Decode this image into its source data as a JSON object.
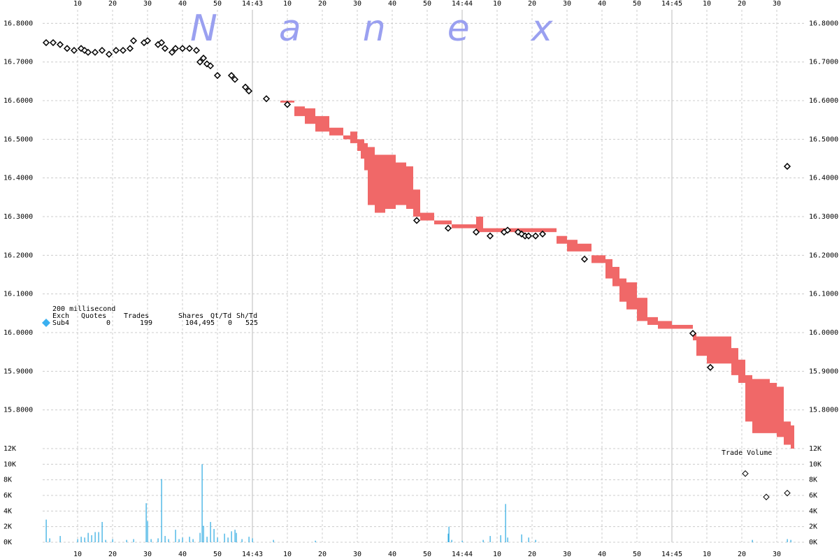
{
  "chart_data": [
    {
      "type": "price",
      "watermark": "Nanex",
      "xlim": [
        0,
        218
      ],
      "xticks": [
        {
          "value": 10,
          "label": "10"
        },
        {
          "value": 20,
          "label": "20"
        },
        {
          "value": 30,
          "label": "30"
        },
        {
          "value": 40,
          "label": "40"
        },
        {
          "value": 50,
          "label": "50"
        },
        {
          "value": 60,
          "label": "14:43"
        },
        {
          "value": 70,
          "label": "10"
        },
        {
          "value": 80,
          "label": "20"
        },
        {
          "value": 90,
          "label": "30"
        },
        {
          "value": 100,
          "label": "40"
        },
        {
          "value": 110,
          "label": "50"
        },
        {
          "value": 120,
          "label": "14:44"
        },
        {
          "value": 130,
          "label": "10"
        },
        {
          "value": 140,
          "label": "20"
        },
        {
          "value": 150,
          "label": "30"
        },
        {
          "value": 160,
          "label": "40"
        },
        {
          "value": 170,
          "label": "50"
        },
        {
          "value": 180,
          "label": "14:45"
        },
        {
          "value": 190,
          "label": "10"
        },
        {
          "value": 200,
          "label": "20"
        },
        {
          "value": 210,
          "label": "30"
        }
      ],
      "ylim": [
        15.7,
        16.835
      ],
      "yticks": [
        {
          "value": 15.8,
          "label": "15.8000"
        },
        {
          "value": 15.9,
          "label": "15.9000"
        },
        {
          "value": 16.0,
          "label": "16.0000"
        },
        {
          "value": 16.1,
          "label": "16.1000"
        },
        {
          "value": 16.2,
          "label": "16.2000"
        },
        {
          "value": 16.3,
          "label": "16.3000"
        },
        {
          "value": 16.4,
          "label": "16.4000"
        },
        {
          "value": 16.5,
          "label": "16.5000"
        },
        {
          "value": 16.6,
          "label": "16.6000"
        },
        {
          "value": 16.7,
          "label": "16.7000"
        },
        {
          "value": 16.8,
          "label": "16.8000"
        }
      ],
      "grid": true,
      "quote_range": {
        "color": "#f06868",
        "x": [
          68,
          72,
          75,
          78,
          82,
          86,
          88,
          90,
          91,
          92,
          93,
          95,
          98,
          101,
          104,
          106,
          108,
          112,
          117,
          124,
          126,
          133,
          147,
          150,
          153,
          157,
          161,
          163,
          165,
          167,
          170,
          173,
          176,
          180,
          186,
          187,
          190,
          196,
          197,
          199,
          201,
          203,
          206,
          208,
          210,
          212,
          214
        ],
        "low": [
          16.595,
          16.56,
          16.54,
          16.52,
          16.51,
          16.5,
          16.49,
          16.47,
          16.45,
          16.42,
          16.33,
          16.31,
          16.32,
          16.33,
          16.32,
          16.3,
          16.29,
          16.28,
          16.27,
          16.26,
          16.26,
          16.26,
          16.23,
          16.21,
          16.21,
          16.18,
          16.14,
          16.12,
          16.08,
          16.06,
          16.03,
          16.02,
          16.01,
          16.01,
          15.98,
          15.94,
          15.92,
          15.92,
          15.89,
          15.87,
          15.77,
          15.74,
          15.74,
          15.74,
          15.73,
          15.71,
          15.7
        ],
        "high": [
          16.6,
          16.585,
          16.58,
          16.56,
          16.53,
          16.51,
          16.52,
          16.5,
          16.5,
          16.49,
          16.48,
          16.46,
          16.46,
          16.44,
          16.43,
          16.37,
          16.31,
          16.29,
          16.28,
          16.3,
          16.27,
          16.27,
          16.25,
          16.24,
          16.23,
          16.2,
          16.19,
          16.17,
          16.14,
          16.13,
          16.09,
          16.04,
          16.03,
          16.02,
          16.0,
          15.99,
          15.99,
          15.99,
          15.96,
          15.93,
          15.89,
          15.88,
          15.88,
          15.87,
          15.86,
          15.77,
          15.76
        ]
      },
      "trades": {
        "color": "#000000",
        "x": [
          1,
          3,
          5,
          7,
          9,
          11,
          12,
          13,
          15,
          17,
          19,
          21,
          23,
          25,
          26,
          29,
          30,
          33,
          34,
          35,
          37,
          38,
          40,
          42,
          44,
          45,
          46,
          47,
          48,
          50,
          54,
          55,
          58,
          59,
          64,
          70,
          107,
          116,
          124,
          128,
          132,
          133,
          136,
          137,
          138,
          139,
          141,
          143,
          155,
          186,
          191,
          213
        ],
        "y": [
          16.75,
          16.75,
          16.745,
          16.735,
          16.73,
          16.735,
          16.73,
          16.725,
          16.725,
          16.73,
          16.72,
          16.73,
          16.73,
          16.735,
          16.755,
          16.75,
          16.755,
          16.745,
          16.75,
          16.735,
          16.725,
          16.735,
          16.735,
          16.735,
          16.73,
          16.7,
          16.71,
          16.695,
          16.69,
          16.665,
          16.665,
          16.655,
          16.635,
          16.625,
          16.605,
          16.59,
          16.29,
          16.27,
          16.26,
          16.25,
          16.26,
          16.265,
          16.26,
          16.255,
          16.25,
          16.25,
          16.25,
          16.255,
          16.19,
          15.998,
          15.91,
          16.43
        ]
      },
      "legend": {
        "title": "200 millisecond",
        "headers": [
          "Exch",
          "Quotes",
          "Trades",
          "Shares",
          "Qt/Td",
          "Sh/Td"
        ],
        "row": [
          "Sub4",
          "0",
          "199",
          "104,495",
          "0",
          "525"
        ]
      }
    },
    {
      "type": "volume",
      "title": "Trade Volume",
      "xlim": [
        0,
        218
      ],
      "xticks": [
        {
          "value": 10,
          "label": "10"
        },
        {
          "value": 20,
          "label": "20"
        },
        {
          "value": 30,
          "label": "30"
        },
        {
          "value": 40,
          "label": "40"
        },
        {
          "value": 50,
          "label": "50"
        },
        {
          "value": 60,
          "label": "14:43"
        },
        {
          "value": 70,
          "label": "10"
        },
        {
          "value": 80,
          "label": "20"
        },
        {
          "value": 90,
          "label": "30"
        },
        {
          "value": 100,
          "label": "40"
        },
        {
          "value": 110,
          "label": "50"
        },
        {
          "value": 120,
          "label": "14:44"
        },
        {
          "value": 130,
          "label": "10"
        },
        {
          "value": 140,
          "label": "20"
        },
        {
          "value": 150,
          "label": "30"
        },
        {
          "value": 160,
          "label": "40"
        },
        {
          "value": 170,
          "label": "50"
        },
        {
          "value": 180,
          "label": "14:45"
        },
        {
          "value": 190,
          "label": "10"
        },
        {
          "value": 200,
          "label": "20"
        },
        {
          "value": 210,
          "label": "30"
        }
      ],
      "ylim": [
        0,
        12000
      ],
      "yticks": [
        {
          "value": 0,
          "label": "0K"
        },
        {
          "value": 2000,
          "label": "2K"
        },
        {
          "value": 4000,
          "label": "4K"
        },
        {
          "value": 6000,
          "label": "6K"
        },
        {
          "value": 8000,
          "label": "8K"
        },
        {
          "value": 10000,
          "label": "10K"
        },
        {
          "value": 12000,
          "label": "12K"
        }
      ],
      "grid": true,
      "color": "#29a8e0",
      "x": [
        1,
        2,
        5,
        10,
        11,
        12,
        13,
        14,
        15,
        16,
        17,
        18,
        20,
        24,
        26,
        29.6,
        30,
        31,
        33,
        34,
        35,
        36,
        38,
        39,
        40,
        42,
        43,
        45,
        45.6,
        46,
        47,
        48,
        49,
        50,
        52,
        53,
        54,
        55,
        55.4,
        57,
        59,
        60,
        66,
        78,
        116,
        116.2,
        117,
        120,
        126,
        128,
        131,
        132.4,
        133,
        137,
        139,
        141,
        203,
        213,
        214
      ],
      "values": [
        2900,
        500,
        800,
        400,
        700,
        600,
        1200,
        900,
        1300,
        1300,
        2600,
        300,
        400,
        300,
        400,
        5000,
        2700,
        400,
        500,
        8100,
        800,
        400,
        1600,
        400,
        600,
        700,
        400,
        1200,
        10000,
        2100,
        700,
        2600,
        1700,
        600,
        1100,
        600,
        1400,
        1600,
        1200,
        400,
        700,
        500,
        300,
        200,
        1100,
        2000,
        300,
        200,
        300,
        800,
        900,
        4900,
        600,
        1000,
        600,
        300,
        300,
        400,
        300
      ],
      "points": {
        "x": [
          201,
          207,
          213
        ],
        "y": [
          8800,
          5800,
          6300
        ]
      }
    }
  ]
}
